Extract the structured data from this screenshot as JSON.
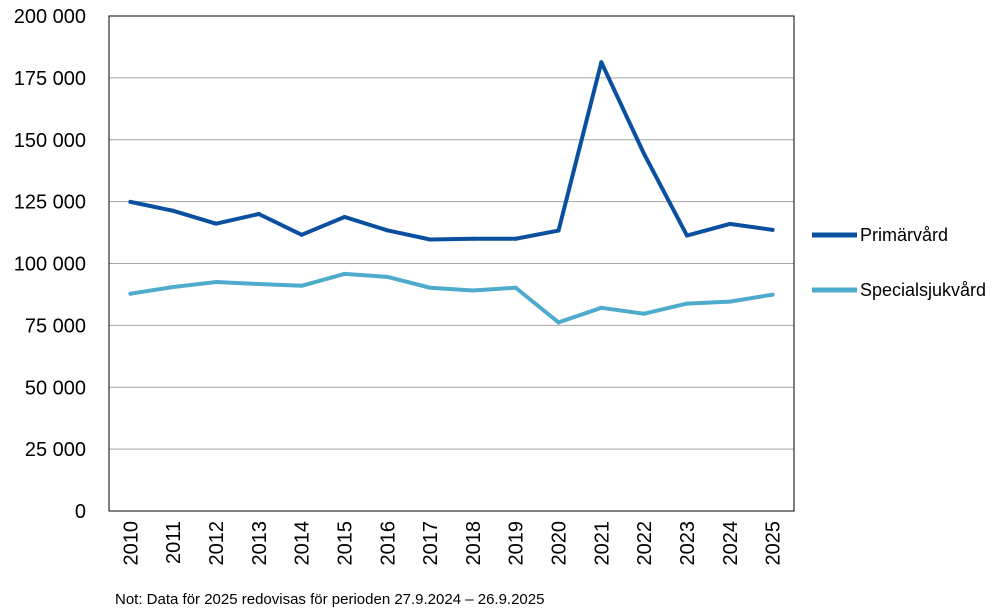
{
  "chart_data": {
    "type": "line",
    "title": "",
    "xlabel": "",
    "ylabel": "",
    "x": [
      "2010",
      "2011",
      "2012",
      "2013",
      "2014",
      "2015",
      "2016",
      "2017",
      "2018",
      "2019",
      "2020",
      "2021",
      "2022",
      "2023",
      "2024",
      "2025"
    ],
    "ylim": [
      0,
      200000
    ],
    "yticks": [
      0,
      25000,
      50000,
      75000,
      100000,
      125000,
      150000,
      175000,
      200000
    ],
    "ytick_labels": [
      "0",
      "25 000",
      "50 000",
      "75 000",
      "100 000",
      "125 000",
      "150 000",
      "175 000",
      "200 000"
    ],
    "grid": true,
    "legend_position": "right",
    "series": [
      {
        "name": "Primärvård",
        "color": "#0b4fa0",
        "values": [
          124900,
          121300,
          116100,
          120000,
          111600,
          118800,
          113400,
          109700,
          110000,
          110000,
          113300,
          181300,
          144200,
          111300,
          116000,
          113600
        ]
      },
      {
        "name": "Specialsjukvård",
        "color": "#4eabcb",
        "values": [
          87800,
          90500,
          92500,
          91700,
          91000,
          95800,
          94600,
          90200,
          89100,
          90200,
          76200,
          82100,
          79700,
          83800,
          84600,
          87400
        ]
      }
    ],
    "note": "Not: Data för 2025 redovisas för perioden 27.9.2024 – 26.9.2025"
  }
}
